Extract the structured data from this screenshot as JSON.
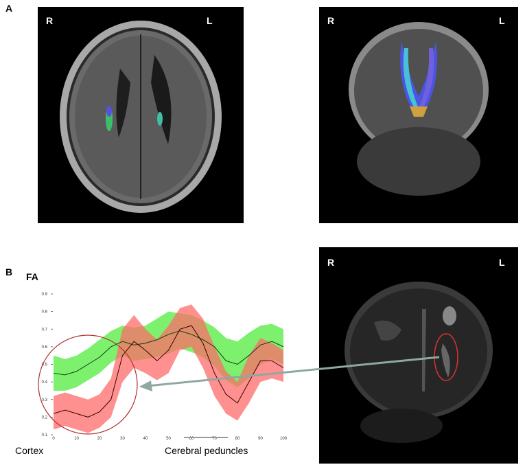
{
  "panels": {
    "a_label": "A",
    "b_label": "B"
  },
  "orientation": {
    "right": "R",
    "left": "L"
  },
  "fa_label": "FA",
  "captions": {
    "left": "Cortex",
    "right": "Cerebral peduncles"
  },
  "colors": {
    "patient_band": "#ff6b6b",
    "patient_line": "#3a0000",
    "control_band": "#66ee55",
    "control_line": "#0c3d0c",
    "circle": "#b03030",
    "arrow": "#8fa8a0",
    "flair_ellipse": "#e03030"
  },
  "chart_data": {
    "type": "line",
    "xlim": [
      0,
      100
    ],
    "ylim": [
      0.1,
      0.9
    ],
    "x_ticks": [
      0,
      10,
      20,
      30,
      40,
      50,
      60,
      70,
      80,
      90,
      100
    ],
    "y_ticks": [
      0.1,
      0.2,
      0.3,
      0.4,
      0.5,
      0.6,
      0.7,
      0.8,
      0.9
    ],
    "x": [
      0,
      5,
      10,
      15,
      20,
      25,
      30,
      35,
      40,
      45,
      50,
      55,
      60,
      65,
      70,
      75,
      80,
      85,
      90,
      95,
      100
    ],
    "series": [
      {
        "role": "control",
        "mean": [
          0.45,
          0.44,
          0.46,
          0.5,
          0.54,
          0.6,
          0.63,
          0.61,
          0.62,
          0.64,
          0.67,
          0.69,
          0.67,
          0.64,
          0.6,
          0.52,
          0.5,
          0.55,
          0.61,
          0.63,
          0.6
        ],
        "upper": [
          0.55,
          0.53,
          0.55,
          0.59,
          0.64,
          0.69,
          0.72,
          0.71,
          0.72,
          0.76,
          0.8,
          0.79,
          0.78,
          0.75,
          0.71,
          0.65,
          0.63,
          0.68,
          0.72,
          0.73,
          0.7
        ],
        "lower": [
          0.35,
          0.35,
          0.37,
          0.41,
          0.45,
          0.51,
          0.55,
          0.52,
          0.53,
          0.54,
          0.56,
          0.59,
          0.57,
          0.54,
          0.49,
          0.41,
          0.37,
          0.42,
          0.5,
          0.53,
          0.5
        ]
      },
      {
        "role": "patient",
        "mean": [
          0.22,
          0.24,
          0.22,
          0.2,
          0.23,
          0.3,
          0.55,
          0.63,
          0.58,
          0.52,
          0.58,
          0.7,
          0.72,
          0.62,
          0.45,
          0.33,
          0.28,
          0.4,
          0.52,
          0.52,
          0.48
        ],
        "upper": [
          0.32,
          0.34,
          0.32,
          0.3,
          0.33,
          0.42,
          0.7,
          0.78,
          0.7,
          0.64,
          0.72,
          0.82,
          0.84,
          0.76,
          0.6,
          0.46,
          0.4,
          0.55,
          0.65,
          0.62,
          0.58
        ],
        "lower": [
          0.13,
          0.15,
          0.13,
          0.11,
          0.14,
          0.2,
          0.4,
          0.48,
          0.45,
          0.41,
          0.45,
          0.58,
          0.6,
          0.48,
          0.32,
          0.22,
          0.18,
          0.28,
          0.4,
          0.42,
          0.4
        ]
      }
    ]
  }
}
